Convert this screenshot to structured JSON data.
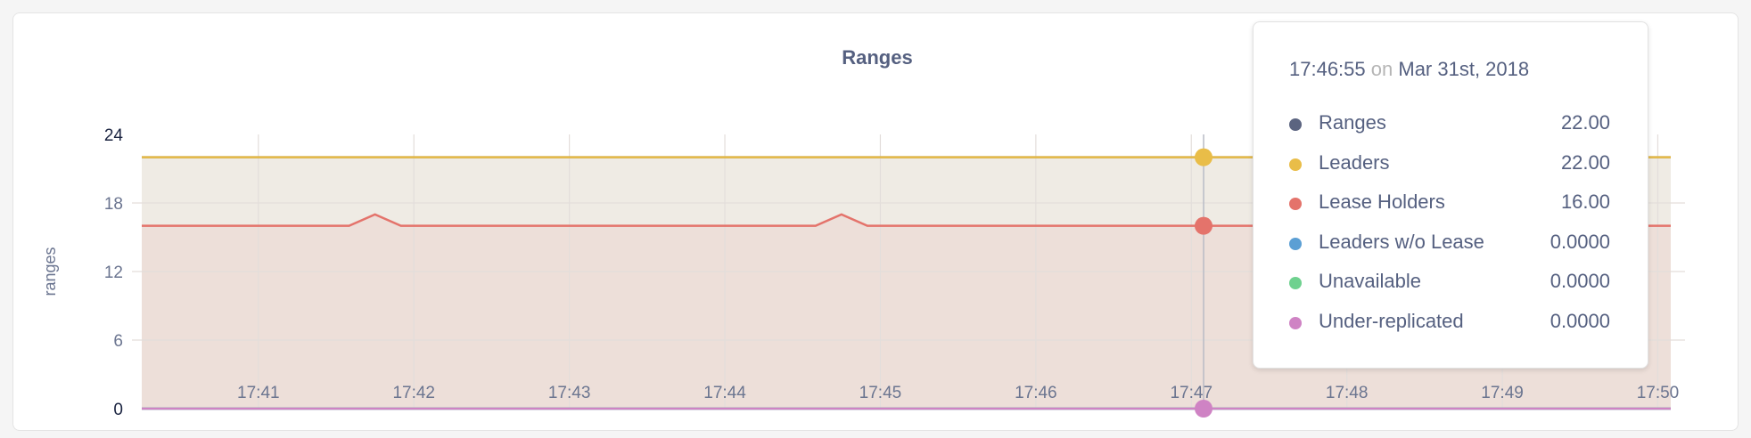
{
  "chart_data": {
    "type": "area",
    "title": "Ranges",
    "ylabel": "ranges",
    "xlabel": "",
    "ylim": [
      0,
      24
    ],
    "yticks": [
      "0",
      "6",
      "12",
      "18",
      "24"
    ],
    "xlim": [
      "17:40:15",
      "17:50:05"
    ],
    "xticks": [
      "17:41",
      "17:42",
      "17:43",
      "17:44",
      "17:45",
      "17:46",
      "17:47",
      "17:48",
      "17:49",
      "17:50"
    ],
    "grid": true,
    "series": [
      {
        "name": "Ranges",
        "color": "#5b6480",
        "points": [
          [
            "17:40:15",
            22
          ],
          [
            "17:50:05",
            22
          ]
        ]
      },
      {
        "name": "Leaders",
        "color": "#e9bd48",
        "fill": "#efebe4",
        "points": [
          [
            "17:40:15",
            22
          ],
          [
            "17:50:05",
            22
          ]
        ]
      },
      {
        "name": "Lease Holders",
        "color": "#e4736b",
        "fill": "#eddfd9",
        "points": [
          [
            "17:40:15",
            16
          ],
          [
            "17:41:35",
            16
          ],
          [
            "17:41:45",
            17
          ],
          [
            "17:41:55",
            16
          ],
          [
            "17:44:35",
            16
          ],
          [
            "17:44:45",
            17
          ],
          [
            "17:44:55",
            16
          ],
          [
            "17:50:05",
            16
          ]
        ]
      },
      {
        "name": "Leaders w/o Lease",
        "color": "#5b9fd4",
        "points": [
          [
            "17:40:15",
            0
          ],
          [
            "17:50:05",
            0
          ]
        ]
      },
      {
        "name": "Unavailable",
        "color": "#6fd18f",
        "points": [
          [
            "17:40:15",
            0
          ],
          [
            "17:50:05",
            0
          ]
        ]
      },
      {
        "name": "Under-replicated",
        "color": "#cf83c4",
        "points": [
          [
            "17:40:15",
            0
          ],
          [
            "17:50:05",
            0
          ]
        ]
      }
    ],
    "hover": {
      "time": "17:46:55",
      "on": "on",
      "date": "Mar 31st, 2018",
      "rows": [
        {
          "label": "Ranges",
          "value": "22.00",
          "color": "#5b6480"
        },
        {
          "label": "Leaders",
          "value": "22.00",
          "color": "#e9bd48"
        },
        {
          "label": "Lease Holders",
          "value": "16.00",
          "color": "#e4736b"
        },
        {
          "label": "Leaders w/o Lease",
          "value": "0.0000",
          "color": "#5b9fd4"
        },
        {
          "label": "Unavailable",
          "value": "0.0000",
          "color": "#6fd18f"
        },
        {
          "label": "Under-replicated",
          "value": "0.0000",
          "color": "#cf83c4"
        }
      ]
    }
  }
}
